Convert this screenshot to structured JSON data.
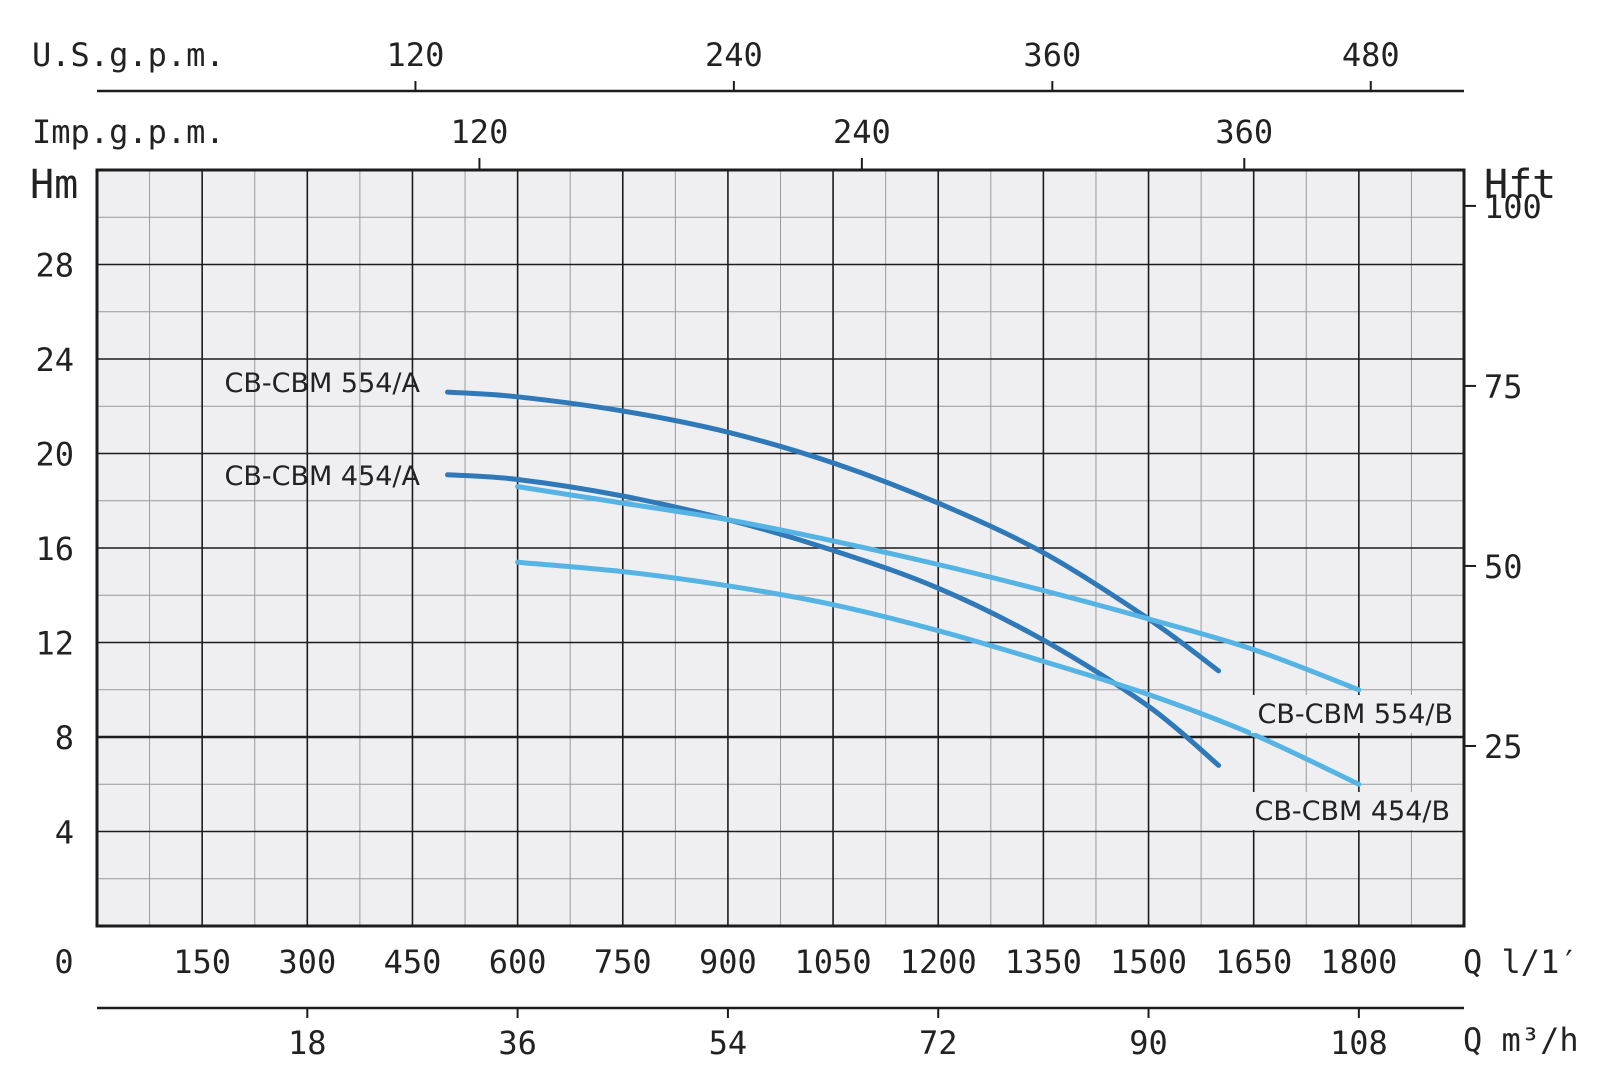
{
  "chart_data": {
    "type": "line",
    "title": "",
    "x_axis": {
      "label": "Q l/1′",
      "range": [
        0,
        1950
      ],
      "ticks": [
        "0",
        "150",
        "300",
        "450",
        "600",
        "750",
        "900",
        "1050",
        "1200",
        "1350",
        "1500",
        "1650",
        "1800"
      ],
      "tick_values": [
        0,
        150,
        300,
        450,
        600,
        750,
        900,
        1050,
        1200,
        1350,
        1500,
        1650,
        1800
      ]
    },
    "y_axis": {
      "label": "Hm",
      "range": [
        0,
        32
      ],
      "ticks": [
        "4",
        "8",
        "12",
        "16",
        "20",
        "24",
        "28"
      ],
      "tick_values": [
        4,
        8,
        12,
        16,
        20,
        24,
        28
      ]
    },
    "secondary_y_axis": {
      "label": "Hft",
      "ticks": [
        "25",
        "50",
        "75",
        "100"
      ],
      "tick_values": [
        25,
        50,
        75,
        100
      ]
    },
    "secondary_x_axes": [
      {
        "position": "top",
        "label": "U.S.g.p.m.",
        "ticks": [
          "120",
          "240",
          "360",
          "480"
        ],
        "tick_values": [
          120,
          240,
          360,
          480
        ]
      },
      {
        "position": "top-inner",
        "label": "Imp.g.p.m.",
        "ticks": [
          "120",
          "240",
          "360"
        ],
        "tick_values": [
          120,
          240,
          360
        ]
      },
      {
        "position": "bottom",
        "label": "Q m³/h",
        "ticks": [
          "18",
          "36",
          "54",
          "72",
          "90",
          "108"
        ],
        "tick_values": [
          18,
          36,
          54,
          72,
          90,
          108
        ]
      }
    ],
    "grid": true,
    "series": [
      {
        "name": "CB-CBM 554/A",
        "color": "#2f79b9",
        "x": [
          500,
          600,
          750,
          900,
          1050,
          1200,
          1350,
          1500,
          1600
        ],
        "y": [
          22.6,
          22.4,
          21.8,
          20.9,
          19.6,
          17.9,
          15.8,
          13.0,
          10.8
        ]
      },
      {
        "name": "CB-CBM 454/A",
        "color": "#2f79b9",
        "x": [
          500,
          600,
          750,
          900,
          1050,
          1200,
          1350,
          1500,
          1600
        ],
        "y": [
          19.1,
          18.9,
          18.2,
          17.2,
          15.9,
          14.3,
          12.1,
          9.3,
          6.8
        ]
      },
      {
        "name": "CB-CBM 554/B",
        "color": "#55b4e3",
        "x": [
          600,
          750,
          900,
          1050,
          1200,
          1350,
          1500,
          1650,
          1800
        ],
        "y": [
          18.6,
          17.9,
          17.2,
          16.3,
          15.3,
          14.2,
          13.0,
          11.7,
          10.0
        ]
      },
      {
        "name": "CB-CBM 454/B",
        "color": "#55b4e3",
        "x": [
          600,
          750,
          900,
          1050,
          1200,
          1350,
          1500,
          1650,
          1800
        ],
        "y": [
          15.4,
          15.0,
          14.4,
          13.6,
          12.5,
          11.2,
          9.8,
          8.1,
          6.0
        ]
      }
    ]
  }
}
